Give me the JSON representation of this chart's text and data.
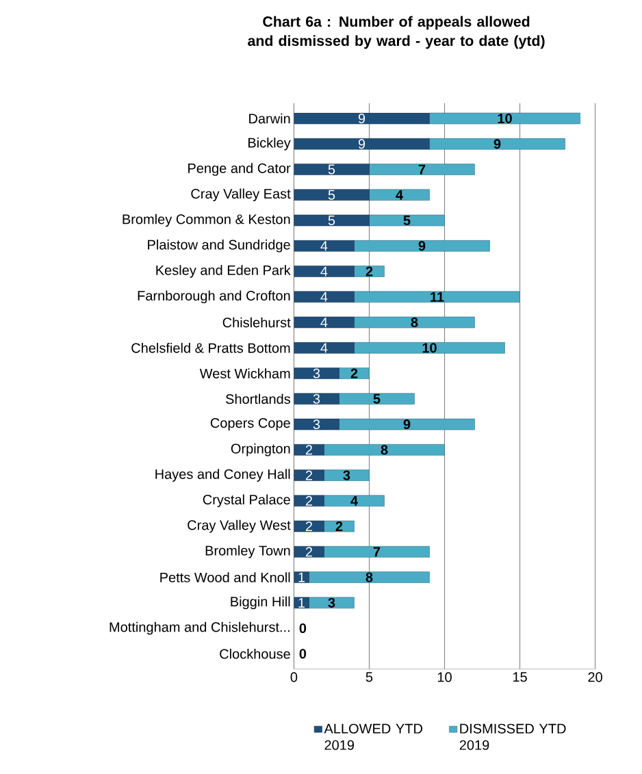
{
  "chart_data": {
    "type": "bar",
    "orientation": "horizontal",
    "stacked": true,
    "title": "Chart 6a : Number of appeals allowed and dismissed by ward - year to date (ytd)",
    "categories": [
      "Darwin",
      "Bickley",
      "Penge and Cator",
      "Cray Valley East",
      "Bromley Common & Keston",
      "Plaistow and Sundridge",
      "Kesley and Eden Park",
      "Farnborough and Crofton",
      "Chislehurst",
      "Chelsfield & Pratts Bottom",
      "West Wickham",
      "Shortlands",
      "Copers Cope",
      "Orpington",
      "Hayes and Coney Hall",
      "Crystal Palace",
      "Cray Valley West",
      "Bromley Town",
      "Petts Wood and Knoll",
      "Biggin Hill",
      "Mottingham and Chislehurst...",
      "Clockhouse"
    ],
    "series": [
      {
        "name": "ALLOWED YTD 2019",
        "color": "#1f4e79",
        "values": [
          9,
          9,
          5,
          5,
          5,
          4,
          4,
          4,
          4,
          4,
          3,
          3,
          3,
          2,
          2,
          2,
          2,
          2,
          1,
          1,
          0,
          0
        ],
        "value_labels": [
          "9",
          "9",
          "5",
          "5",
          "5",
          "4",
          "4",
          "4",
          "4",
          "4",
          "3",
          "3",
          "3",
          "2",
          "2",
          "2",
          "2",
          "2",
          "1",
          "1",
          null,
          null
        ]
      },
      {
        "name": "DISMISSED YTD 2019",
        "color": "#4bacc6",
        "values": [
          10,
          9,
          7,
          4,
          5,
          9,
          2,
          11,
          8,
          10,
          2,
          5,
          9,
          8,
          3,
          4,
          2,
          7,
          8,
          3,
          0,
          0
        ],
        "value_labels": [
          "10",
          "9",
          "7",
          "4",
          "5",
          "9",
          "2",
          "11",
          "8",
          "10",
          "2",
          "5",
          "9",
          "8",
          "3",
          "4",
          "2",
          "7",
          "8",
          "3",
          "0",
          "0"
        ]
      }
    ],
    "xlim": [
      0,
      20
    ],
    "xticks": [
      0,
      5,
      10,
      15,
      20
    ],
    "grid": "x",
    "legend": "bottom"
  }
}
